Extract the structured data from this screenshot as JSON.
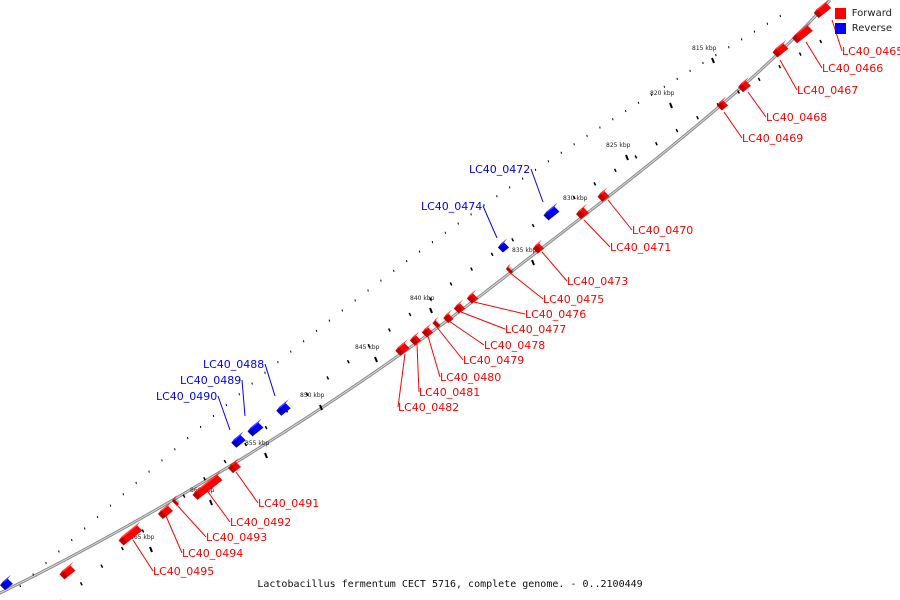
{
  "caption": "Lactobacillus fermentum CECT 5716, complete genome. - 0..2100449",
  "legend": {
    "forward_label": "Forward",
    "reverse_label": "Reverse",
    "forward_color": "#ff0000",
    "reverse_color": "#0000ff"
  },
  "colors": {
    "forward": "#ff0000",
    "reverse": "#0000ff",
    "backbone": "#888888",
    "ticks": "#000000"
  },
  "ticks": [
    "815 kbp",
    "820 kbp",
    "825 kbp",
    "830 kbp",
    "835 kbp",
    "840 kbp",
    "845 kbp",
    "850 kbp",
    "855 kbp",
    "860 kbp",
    "865 kbp"
  ],
  "genes": [
    {
      "id": "LC40_0465",
      "strand": "forward"
    },
    {
      "id": "LC40_0466",
      "strand": "forward"
    },
    {
      "id": "LC40_0467",
      "strand": "forward"
    },
    {
      "id": "LC40_0468",
      "strand": "forward"
    },
    {
      "id": "LC40_0469",
      "strand": "forward"
    },
    {
      "id": "LC40_0470",
      "strand": "forward"
    },
    {
      "id": "LC40_0471",
      "strand": "forward"
    },
    {
      "id": "LC40_0472",
      "strand": "reverse"
    },
    {
      "id": "LC40_0473",
      "strand": "forward"
    },
    {
      "id": "LC40_0474",
      "strand": "reverse"
    },
    {
      "id": "LC40_0475",
      "strand": "forward"
    },
    {
      "id": "LC40_0476",
      "strand": "forward"
    },
    {
      "id": "LC40_0477",
      "strand": "forward"
    },
    {
      "id": "LC40_0478",
      "strand": "forward"
    },
    {
      "id": "LC40_0479",
      "strand": "forward"
    },
    {
      "id": "LC40_0480",
      "strand": "forward"
    },
    {
      "id": "LC40_0481",
      "strand": "forward"
    },
    {
      "id": "LC40_0482",
      "strand": "forward"
    },
    {
      "id": "LC40_0488",
      "strand": "reverse"
    },
    {
      "id": "LC40_0489",
      "strand": "reverse"
    },
    {
      "id": "LC40_0490",
      "strand": "reverse"
    },
    {
      "id": "LC40_0491",
      "strand": "forward"
    },
    {
      "id": "LC40_0492",
      "strand": "forward"
    },
    {
      "id": "LC40_0493",
      "strand": "forward"
    },
    {
      "id": "LC40_0494",
      "strand": "forward"
    },
    {
      "id": "LC40_0495",
      "strand": "forward"
    }
  ]
}
